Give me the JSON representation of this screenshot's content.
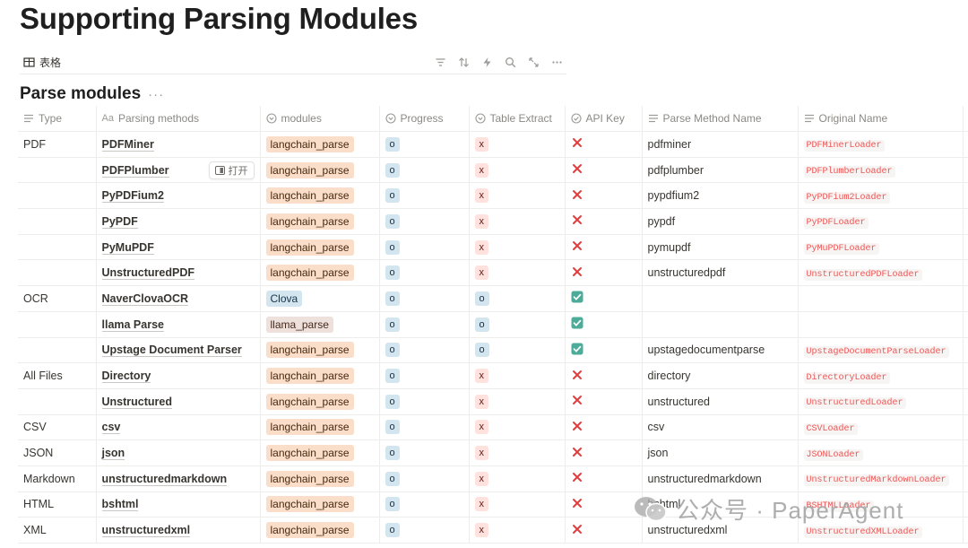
{
  "page": {
    "title": "Supporting Parsing Modules"
  },
  "view": {
    "tab_label": "表格",
    "tools": [
      "filter-icon",
      "sort-icon",
      "automation-bolt-icon",
      "search-icon",
      "expand-icon",
      "more-icon"
    ]
  },
  "database": {
    "title": "Parse modules",
    "more": "···"
  },
  "columns": {
    "type": "Type",
    "method": "Parsing methods",
    "modules": "modules",
    "progress": "Progress",
    "table_extract": "Table Extract",
    "api_key": "API Key",
    "parse_name": "Parse Method Name",
    "orig_name": "Original Name"
  },
  "open_button": "打开",
  "colors": {
    "tag_orange": "#fadec9",
    "tag_blue": "#d3e5ef",
    "tag_brown": "#eee0da",
    "x_mark": "#e03e3e",
    "check": "#4dab9a",
    "code_text": "#eb5757"
  },
  "rows": [
    {
      "type": "PDF",
      "method": "PDFMiner",
      "module": "langchain_parse",
      "module_color": "orange",
      "progress": "o",
      "table_extract": "x",
      "api_key": "x",
      "parse_name": "pdfminer",
      "orig_name": "PDFMinerLoader"
    },
    {
      "type": "",
      "method": "PDFPlumber",
      "module": "langchain_parse",
      "module_color": "orange",
      "progress": "o",
      "table_extract": "x",
      "api_key": "x",
      "parse_name": "pdfplumber",
      "orig_name": "PDFPlumberLoader"
    },
    {
      "type": "",
      "method": "PyPDFium2",
      "module": "langchain_parse",
      "module_color": "orange",
      "progress": "o",
      "table_extract": "x",
      "api_key": "x",
      "parse_name": "pypdfium2",
      "orig_name": "PyPDFium2Loader"
    },
    {
      "type": "",
      "method": "PyPDF",
      "module": "langchain_parse",
      "module_color": "orange",
      "progress": "o",
      "table_extract": "x",
      "api_key": "x",
      "parse_name": "pypdf",
      "orig_name": "PyPDFLoader"
    },
    {
      "type": "",
      "method": "PyMuPDF",
      "module": "langchain_parse",
      "module_color": "orange",
      "progress": "o",
      "table_extract": "x",
      "api_key": "x",
      "parse_name": "pymupdf",
      "orig_name": "PyMuPDFLoader"
    },
    {
      "type": "",
      "method": "UnstructuredPDF",
      "module": "langchain_parse",
      "module_color": "orange",
      "progress": "o",
      "table_extract": "x",
      "api_key": "x",
      "parse_name": "unstructuredpdf",
      "orig_name": "UnstructuredPDFLoader"
    },
    {
      "type": "OCR",
      "method": "NaverClovaOCR",
      "module": "Clova",
      "module_color": "blue",
      "progress": "o",
      "table_extract": "o",
      "api_key": "check",
      "parse_name": "",
      "orig_name": ""
    },
    {
      "type": "",
      "method": "llama Parse",
      "module": "llama_parse",
      "module_color": "brown",
      "progress": "o",
      "table_extract": "o",
      "api_key": "check",
      "parse_name": "",
      "orig_name": ""
    },
    {
      "type": "",
      "method": "Upstage Document Parser",
      "module": "langchain_parse",
      "module_color": "orange",
      "progress": "o",
      "table_extract": "o",
      "api_key": "check",
      "parse_name": "upstagedocumentparse",
      "orig_name": "UpstageDocumentParseLoader"
    },
    {
      "type": "All Files",
      "method": "Directory",
      "module": "langchain_parse",
      "module_color": "orange",
      "progress": "o",
      "table_extract": "x",
      "api_key": "x",
      "parse_name": "directory",
      "orig_name": "DirectoryLoader"
    },
    {
      "type": "",
      "method": "Unstructured",
      "module": "langchain_parse",
      "module_color": "orange",
      "progress": "o",
      "table_extract": "x",
      "api_key": "x",
      "parse_name": "unstructured",
      "orig_name": "UnstructuredLoader"
    },
    {
      "type": "CSV",
      "method": "csv",
      "module": "langchain_parse",
      "module_color": "orange",
      "progress": "o",
      "table_extract": "x",
      "api_key": "x",
      "parse_name": "csv",
      "orig_name": "CSVLoader"
    },
    {
      "type": "JSON",
      "method": "json",
      "module": "langchain_parse",
      "module_color": "orange",
      "progress": "o",
      "table_extract": "x",
      "api_key": "x",
      "parse_name": "json",
      "orig_name": "JSONLoader"
    },
    {
      "type": "Markdown",
      "method": "unstructuredmarkdown",
      "module": "langchain_parse",
      "module_color": "orange",
      "progress": "o",
      "table_extract": "x",
      "api_key": "x",
      "parse_name": "unstructuredmarkdown",
      "orig_name": "UnstructuredMarkdownLoader"
    },
    {
      "type": "HTML",
      "method": "bshtml",
      "module": "langchain_parse",
      "module_color": "orange",
      "progress": "o",
      "table_extract": "x",
      "api_key": "x",
      "parse_name": "bshtml",
      "orig_name": "BSHTMLLoader"
    },
    {
      "type": "XML",
      "method": "unstructuredxml",
      "module": "langchain_parse",
      "module_color": "orange",
      "progress": "o",
      "table_extract": "x",
      "api_key": "x",
      "parse_name": "unstructuredxml",
      "orig_name": "UnstructuredXMLLoader"
    }
  ],
  "watermark": {
    "text": "公众号 · PaperAgent",
    "icon": "wechat-icon"
  }
}
